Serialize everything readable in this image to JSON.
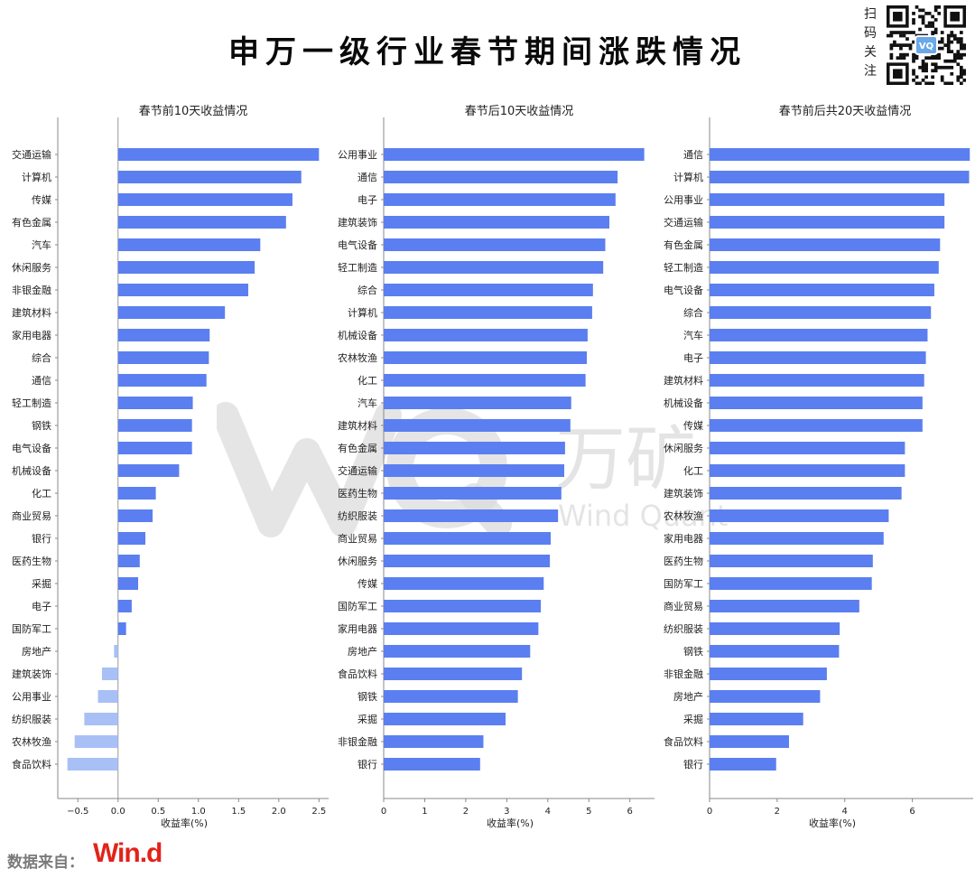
{
  "title": "申万一级行业春节期间涨跌情况",
  "qr": {
    "caption": [
      "扫",
      "码",
      "关",
      "注"
    ],
    "logo_text": "VQ"
  },
  "watermark": {
    "cn": "万矿",
    "en": "Wind Quant"
  },
  "source": {
    "label": "数据来自：",
    "logo": "Win.d"
  },
  "colors": {
    "positive_bar": "#5b7ff0",
    "negative_bar": "#a8c0f5",
    "source_logo": "#e2231a"
  },
  "chart_data": [
    {
      "type": "bar",
      "orientation": "horizontal",
      "title": "春节前10天收益情况",
      "xlabel": "收益率(%)",
      "xlim": [
        -0.75,
        2.62
      ],
      "xticks": [
        -0.5,
        0.0,
        0.5,
        1.0,
        1.5,
        2.0,
        2.5
      ],
      "xtick_labels": [
        "−0.5",
        "0.0",
        "0.5",
        "1.0",
        "1.5",
        "2.0",
        "2.5"
      ],
      "categories": [
        "交通运输",
        "计算机",
        "传媒",
        "有色金属",
        "汽车",
        "休闲服务",
        "非银金融",
        "建筑材料",
        "家用电器",
        "综合",
        "通信",
        "轻工制造",
        "钢铁",
        "电气设备",
        "机械设备",
        "化工",
        "商业贸易",
        "银行",
        "医药生物",
        "采掘",
        "电子",
        "国防军工",
        "房地产",
        "建筑装饰",
        "公用事业",
        "纺织服装",
        "农林牧渔",
        "食品饮料"
      ],
      "values": [
        2.5,
        2.28,
        2.17,
        2.09,
        1.77,
        1.7,
        1.62,
        1.33,
        1.14,
        1.13,
        1.1,
        0.93,
        0.92,
        0.92,
        0.76,
        0.47,
        0.43,
        0.34,
        0.27,
        0.25,
        0.17,
        0.1,
        -0.05,
        -0.2,
        -0.25,
        -0.42,
        -0.54,
        -0.63
      ]
    },
    {
      "type": "bar",
      "orientation": "horizontal",
      "title": "春节后10天收益情况",
      "xlabel": "收益率(%)",
      "xlim": [
        0,
        6.6
      ],
      "xticks": [
        0,
        1,
        2,
        3,
        4,
        5,
        6
      ],
      "xtick_labels": [
        "0",
        "1",
        "2",
        "3",
        "4",
        "5",
        "6"
      ],
      "categories": [
        "公用事业",
        "通信",
        "电子",
        "建筑装饰",
        "电气设备",
        "轻工制造",
        "综合",
        "计算机",
        "机械设备",
        "农林牧渔",
        "化工",
        "汽车",
        "建筑材料",
        "有色金属",
        "交通运输",
        "医药生物",
        "纺织服装",
        "商业贸易",
        "休闲服务",
        "传媒",
        "国防军工",
        "家用电器",
        "房地产",
        "食品饮料",
        "钢铁",
        "采掘",
        "非银金融",
        "银行"
      ],
      "values": [
        6.35,
        5.7,
        5.65,
        5.5,
        5.4,
        5.35,
        5.1,
        5.08,
        4.97,
        4.95,
        4.92,
        4.57,
        4.55,
        4.42,
        4.4,
        4.33,
        4.25,
        4.07,
        4.05,
        3.9,
        3.83,
        3.77,
        3.57,
        3.37,
        3.27,
        2.97,
        2.43,
        2.35
      ]
    },
    {
      "type": "bar",
      "orientation": "horizontal",
      "title": "春节前后共20天收益情况",
      "xlabel": "收益率(%)",
      "xlim": [
        0,
        7.8
      ],
      "xticks": [
        0,
        2,
        4,
        6
      ],
      "xtick_labels": [
        "0",
        "2",
        "4",
        "6"
      ],
      "categories": [
        "通信",
        "计算机",
        "公用事业",
        "交通运输",
        "有色金属",
        "轻工制造",
        "电气设备",
        "综合",
        "汽车",
        "电子",
        "建筑材料",
        "机械设备",
        "传媒",
        "休闲服务",
        "化工",
        "建筑装饰",
        "农林牧渔",
        "家用电器",
        "医药生物",
        "国防军工",
        "商业贸易",
        "纺织服装",
        "钢铁",
        "非银金融",
        "房地产",
        "采掘",
        "食品饮料",
        "银行"
      ],
      "values": [
        7.7,
        7.68,
        6.95,
        6.95,
        6.82,
        6.78,
        6.65,
        6.55,
        6.45,
        6.4,
        6.35,
        6.3,
        6.3,
        5.78,
        5.78,
        5.68,
        5.3,
        5.15,
        4.83,
        4.8,
        4.43,
        3.85,
        3.83,
        3.47,
        3.27,
        2.77,
        2.35,
        1.97
      ]
    }
  ]
}
